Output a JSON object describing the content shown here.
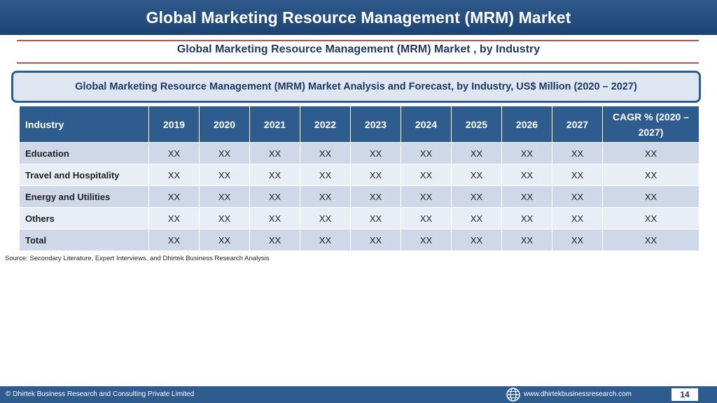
{
  "header": {
    "title": "Global Marketing Resource Management (MRM) Market"
  },
  "subtitle": "Global Marketing Resource Management (MRM) Market , by Industry",
  "banner": "Global Marketing Resource Management (MRM) Market  Analysis and Forecast, by Industry, US$ Million (2020 – 2027)",
  "table": {
    "headers": [
      "Industry",
      "2019",
      "2020",
      "2021",
      "2022",
      "2023",
      "2024",
      "2025",
      "2026",
      "2027",
      "CAGR % (2020 – 2027)"
    ],
    "rows": [
      [
        "Education",
        "XX",
        "XX",
        "XX",
        "XX",
        "XX",
        "XX",
        "XX",
        "XX",
        "XX",
        "XX"
      ],
      [
        "Travel and Hospitality",
        "XX",
        "XX",
        "XX",
        "XX",
        "XX",
        "XX",
        "XX",
        "XX",
        "XX",
        "XX"
      ],
      [
        "Energy and Utilities",
        "XX",
        "XX",
        "XX",
        "XX",
        "XX",
        "XX",
        "XX",
        "XX",
        "XX",
        "XX"
      ],
      [
        "Others",
        "XX",
        "XX",
        "XX",
        "XX",
        "XX",
        "XX",
        "XX",
        "XX",
        "XX",
        "XX"
      ],
      [
        "Total",
        "XX",
        "XX",
        "XX",
        "XX",
        "XX",
        "XX",
        "XX",
        "XX",
        "XX",
        "XX"
      ]
    ]
  },
  "source": "Source: Secondary Literature, Expert Interviews, and Dhirtek Business Research Analysis",
  "footer": {
    "copyright": "© Dhirtek Business Research and Consulting Private Limited",
    "website": "www.dhirtekbusinessresearch.com",
    "page_number": "14",
    "icon": "globe-icon"
  },
  "colors": {
    "header_blue": "#2e5c8f",
    "rule_red": "#c0504d",
    "row_dark": "#cfd8e8",
    "row_light": "#e8edf6",
    "banner_fill": "#dde6f1"
  }
}
